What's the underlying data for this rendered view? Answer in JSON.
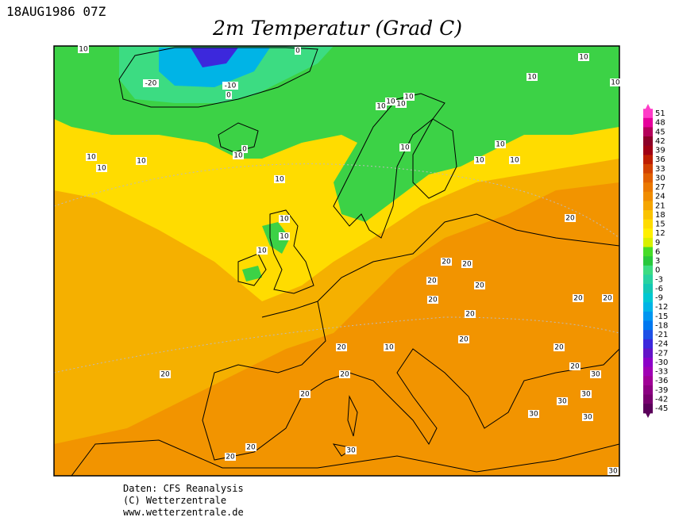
{
  "header": {
    "timestamp": "18AUG1986 07Z",
    "title": "2m Temperatur (Grad C)"
  },
  "map": {
    "contour_labels": [
      10,
      0,
      -20,
      -10,
      0,
      10,
      10,
      10,
      10,
      10,
      10,
      10,
      0,
      10,
      10,
      10,
      10,
      10,
      10,
      10,
      10,
      10,
      10,
      10,
      10,
      20,
      20,
      20,
      20,
      20,
      20,
      20,
      20,
      20,
      20,
      20,
      20,
      10,
      20,
      20,
      30,
      20,
      20,
      30,
      30,
      30,
      30,
      20,
      30,
      20,
      30
    ]
  },
  "legend": {
    "labels": [
      51,
      48,
      45,
      42,
      39,
      36,
      33,
      30,
      27,
      24,
      21,
      18,
      15,
      12,
      9,
      6,
      3,
      0,
      -3,
      -6,
      -9,
      -12,
      -15,
      -18,
      -21,
      -24,
      -27,
      -30,
      -33,
      -36,
      -39,
      -42,
      -45
    ],
    "colors": [
      "#ff3cc8",
      "#e6009b",
      "#b4005a",
      "#8c0028",
      "#a00014",
      "#be1e00",
      "#d24100",
      "#e15f00",
      "#eb7800",
      "#f08c00",
      "#f5a500",
      "#fac300",
      "#ffdc00",
      "#fff000",
      "#d8f000",
      "#46dc28",
      "#28c83c",
      "#3cdc82",
      "#28d2a0",
      "#14c8b4",
      "#00c8d2",
      "#00b4e6",
      "#0096f0",
      "#0078f0",
      "#1e50e6",
      "#3c28dc",
      "#6414c8",
      "#8c00c8",
      "#a000b4",
      "#a00096",
      "#8c0082",
      "#78006e",
      "#5a005a"
    ]
  },
  "footer": {
    "lines": [
      "Daten: CFS Reanalysis",
      "(C) Wetterzentrale",
      "www.wetterzentrale.de"
    ]
  }
}
